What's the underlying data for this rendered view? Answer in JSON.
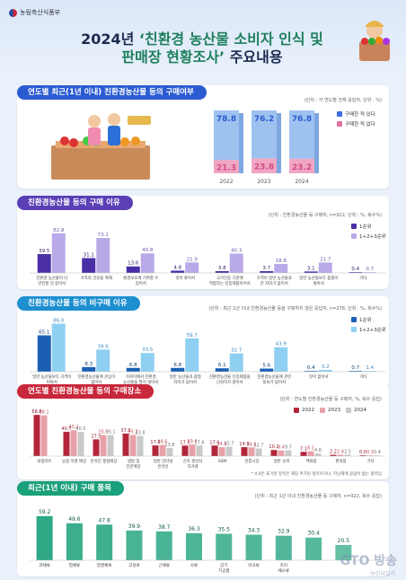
{
  "header": {
    "ministry": "농림축산식품부",
    "title_line1_pre": "2024년 ",
    "title_line1_hl": "‘친환경 농산물 소비자 인식 및",
    "title_line2_hl": "판매장 현황조사’",
    "title_line2_post": " 주요내용"
  },
  "colors": {
    "blue": "#2b5bd1",
    "lightblue": "#9ec2f0",
    "pink": "#e36f9e",
    "red": "#c8283c",
    "green": "#1d7f5c"
  },
  "charts": [
    {
      "section_title": "연도별 최근(1년 이내) 친환경농산물 등의 구매여부",
      "unit": "(단위 : 각 연도별 전체 응답자, 단위 : %)",
      "type": "bar",
      "categories": [
        "2022",
        "2023",
        "2024"
      ],
      "series": [
        {
          "name": "구매한 적 있다",
          "values": [
            78.8,
            76.2,
            76.8
          ]
        },
        {
          "name": "구매한 적 없다",
          "values": [
            21.3,
            23.8,
            23.2
          ]
        }
      ]
    },
    {
      "section_title": "친환경농산물 등의 구매 이유",
      "unit": "(단위 : 친환경농산물 등 구매자, n=922, 단위 : %, 복수%)",
      "type": "bar",
      "categories": [
        "친환경 농산물이 더 안전할 것 같아서",
        "가족의 건강을 위해",
        "환경보호에 기여할 수 있어서",
        "맛이 좋아서",
        "국가인증 기준에 적합하는 인증제품이어서",
        "가격이 일반 농산물과 큰 차이가 없어서",
        "일반 농산물보다 품질이 좋아서",
        "기타"
      ],
      "series": [
        {
          "name": "1순위",
          "values": [
            39.5,
            31.1,
            13.6,
            4.8,
            3.8,
            3.7,
            3.1,
            0.4
          ]
        },
        {
          "name": "1+2+3순위",
          "values": [
            82.8,
            73.1,
            40.8,
            21.9,
            40.3,
            18.8,
            21.7,
            0.7
          ]
        }
      ]
    },
    {
      "section_title": "친환경농산물 등의 비구매 이유",
      "unit": "(단위 : 최근 1년 이내 친환경농산물 등을 구매하지 않은 응답자, n=278, 단위 : %, 복수%)",
      "type": "bar",
      "categories": [
        "일반 농산물보다 가격이 비싸서",
        "친환경농산물에 관심이 없어서",
        "가까이에서 친환경 농산물을 팔지 않아서",
        "일반 농산물과 품질 차이가 없어서",
        "친환경농산물 인증제품을 신뢰하지 않아서",
        "친환경농산물에 관한 정보가 없어서",
        "맛이 없어서",
        "기타"
      ],
      "series": [
        {
          "name": "1순위",
          "values": [
            65.1,
            8.3,
            6.8,
            6.8,
            6.1,
            5.6,
            0.4,
            0.7
          ]
        },
        {
          "name": "1+2+3순위",
          "values": [
            86.0,
            39.6,
            33.5,
            59.7,
            32.7,
            43.9,
            3.2,
            1.4
          ]
        }
      ]
    },
    {
      "section_title": "연도별 친환경농산물 등의 구매장소",
      "unit": "(단위 : 연도별 친환경농산물 등 구매자, %, 복수 응답)",
      "note": "* 0.0은 표기된 항목은 해당 추가된 항목이거나, 지난해에 응답이 없는 항목임",
      "type": "bar",
      "categories": [
        "대형마트",
        "농협 직영 매장",
        "온라인 생협매장",
        "생협 및 전문매장",
        "일반 인터넷 온라인",
        "신가 생산자 직거래",
        "SSM",
        "전통시장",
        "일반 슈퍼",
        "백화점",
        "편의점",
        "기타"
      ],
      "series": [
        {
          "name": "2022",
          "values": [
            68.8,
            40.7,
            27.9,
            37.6,
            17.8,
            17.5,
            17.6,
            14.9,
            10.2,
            7.1,
            2.2,
            0.0
          ]
        },
        {
          "name": "2023",
          "values": [
            68.1,
            43.2,
            35.0,
            35.3,
            18.6,
            19.4,
            14.8,
            14.6,
            9.4,
            8.1,
            2.4,
            0.3
          ]
        },
        {
          "name": "2024",
          "values": [
            null,
            40.5,
            35.1,
            33.8,
            13.8,
            17.6,
            15.7,
            12.7,
            9.7,
            4.6,
            2.5,
            0.4
          ]
        }
      ]
    },
    {
      "section_title": "최근(1년 이내) 구매 품목",
      "unit": "(단위 : 최근 1년 이내 친환경농산물 등 구매자, n=922, 복수 응답)",
      "type": "bar",
      "categories": [
        "과채류",
        "엽채류",
        "엽경채류",
        "고실류",
        "근채류",
        "사류",
        "갑기 가공품",
        "미곡류",
        "조미 채소류",
        "",
        ""
      ],
      "series": [
        {
          "name": "구매 품목",
          "values": [
            59.2,
            49.6,
            47.8,
            39.9,
            38.7,
            36.3,
            35.5,
            34.3,
            32.9,
            30.4,
            20.5
          ]
        }
      ]
    }
  ],
  "watermark": "GTO 방송",
  "watermark_sub": "농민데일리"
}
